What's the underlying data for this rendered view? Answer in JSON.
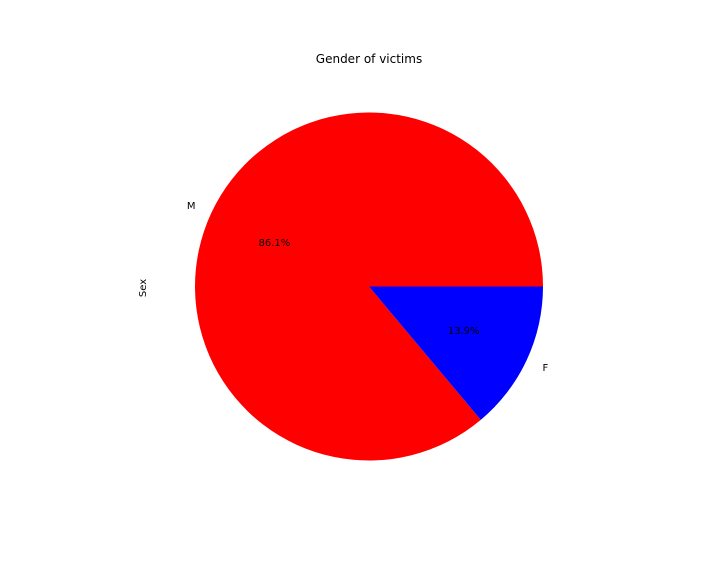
{
  "chart_data": {
    "type": "pie",
    "title": "Gender of victims",
    "ylabel": "Sex",
    "categories": [
      "M",
      "F"
    ],
    "values": [
      86.1,
      13.9
    ],
    "percent_labels": [
      "86.1%",
      "13.9%"
    ],
    "colors": [
      "#ff0000",
      "#0000ff"
    ],
    "start_angle_deg": 0,
    "direction": "counterclockwise",
    "legend": false
  }
}
